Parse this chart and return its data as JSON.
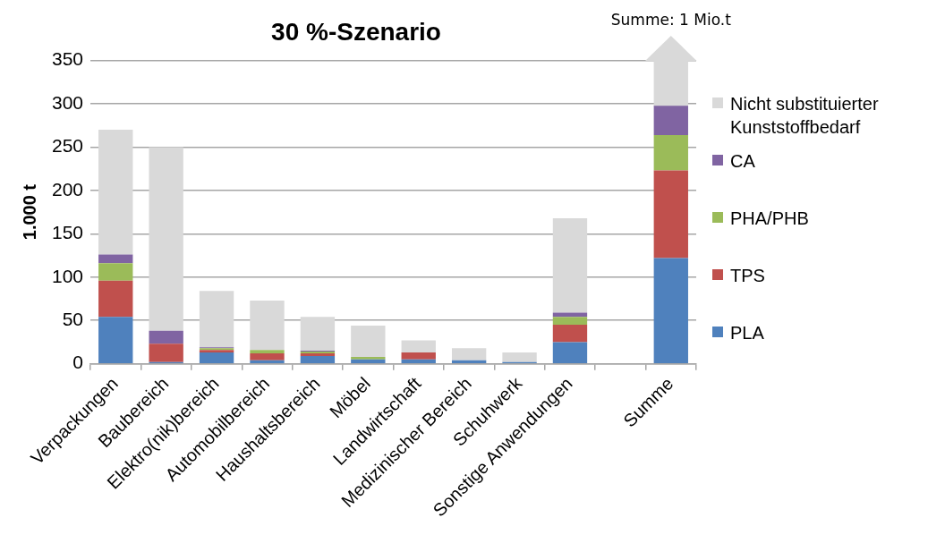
{
  "chart_data": {
    "type": "bar",
    "title": "30 %-Szenario",
    "ylabel": "1.000 t",
    "categories": [
      "Verpackungen",
      "Baubereich",
      "Elektro(nik)bereich",
      "Automobilbereich",
      "Haushaltsbereich",
      "Möbel",
      "Landwirtschaft",
      "Medizinischer Bereich",
      "Schuhwerk",
      "Sonstige Anwendungen",
      null,
      "Summe"
    ],
    "series": [
      {
        "name": "PLA",
        "color": "#4f81bd",
        "values": [
          54,
          2,
          13,
          4,
          9,
          5,
          5,
          4,
          2,
          25,
          null,
          122
        ]
      },
      {
        "name": "TPS",
        "color": "#c0504d",
        "values": [
          42,
          21,
          3,
          8,
          3,
          0,
          8,
          0,
          0,
          20,
          null,
          101
        ]
      },
      {
        "name": "PHA/PHB",
        "color": "#9bbb59",
        "values": [
          20,
          0,
          2,
          4,
          2,
          3,
          0,
          0,
          0,
          9,
          null,
          41
        ]
      },
      {
        "name": "CA",
        "color": "#8064a2",
        "values": [
          10,
          15,
          1,
          0,
          1,
          0,
          0,
          0,
          0,
          5,
          null,
          34
        ]
      },
      {
        "name": "Nicht substituierter Kunststoffbedarf",
        "color": "#d9d9d9",
        "values": [
          144,
          212,
          65,
          57,
          39,
          36,
          14,
          14,
          11,
          109,
          null,
          null
        ]
      }
    ],
    "stacked": true,
    "ylim": [
      0,
      350
    ],
    "yticks": [
      0,
      50,
      100,
      150,
      200,
      250,
      300,
      350
    ],
    "grid": "y",
    "legend": "right",
    "annotations": [
      "Summe: 1 Mio.t"
    ]
  }
}
